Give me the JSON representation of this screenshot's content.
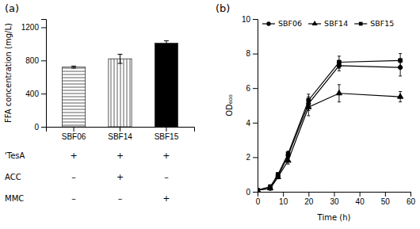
{
  "chart_data": [
    {
      "type": "bar",
      "title": "(a)",
      "categories": [
        "SBF06",
        "SBF14",
        "SBF15"
      ],
      "values": [
        720,
        820,
        1010
      ],
      "errors": [
        12,
        55,
        28
      ],
      "colors": [
        "white",
        "white",
        "black"
      ],
      "y_label": "FFA concentration (mg/L)",
      "ylim": [
        0,
        1300
      ],
      "yticks": [
        0,
        400,
        800,
        1200
      ],
      "grid": false,
      "table": {
        "rows": [
          "'TesA",
          "ACC",
          "MMC"
        ],
        "cells": [
          [
            "+",
            "+",
            "+"
          ],
          [
            "–",
            "+",
            "–"
          ],
          [
            "–",
            "–",
            "+"
          ]
        ]
      }
    },
    {
      "type": "line",
      "title": "(b)",
      "x_label": "Time (h)",
      "y_label": "OD₆₀₀",
      "x": [
        0,
        5,
        8,
        12,
        20,
        32,
        56
      ],
      "xlim": [
        0,
        60
      ],
      "ylim": [
        0,
        10
      ],
      "xticks": [
        0,
        10,
        20,
        30,
        40,
        50,
        60
      ],
      "yticks": [
        0,
        2,
        4,
        6,
        8,
        10
      ],
      "grid": false,
      "legend": "upper left",
      "series": [
        {
          "name": "SBF06",
          "color": "black",
          "marker": "circle",
          "values": [
            0.1,
            0.2,
            0.9,
            2.1,
            5.1,
            7.3,
            7.2
          ],
          "errors": [
            0.05,
            0.05,
            0.1,
            0.15,
            0.4,
            0.3,
            0.5
          ]
        },
        {
          "name": "SBF14",
          "color": "black",
          "marker": "triangle",
          "values": [
            0.1,
            0.2,
            0.85,
            1.8,
            4.9,
            5.7,
            5.5
          ],
          "errors": [
            0.05,
            0.05,
            0.1,
            0.2,
            0.5,
            0.5,
            0.3
          ]
        },
        {
          "name": "SBF15",
          "color": "black",
          "marker": "square",
          "values": [
            0.1,
            0.3,
            1.0,
            2.2,
            5.3,
            7.5,
            7.6
          ],
          "errors": [
            0.05,
            0.05,
            0.1,
            0.15,
            0.35,
            0.35,
            0.4
          ]
        }
      ]
    }
  ]
}
